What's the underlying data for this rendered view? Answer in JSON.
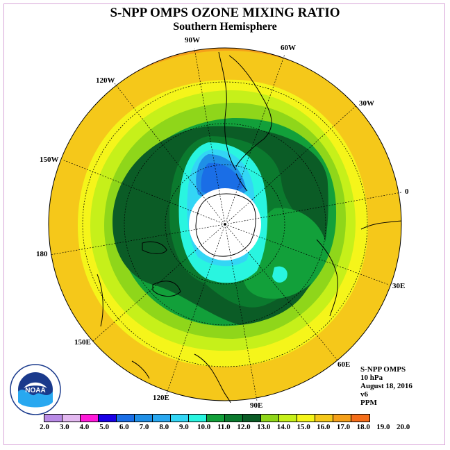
{
  "title": "S-NPP OMPS OZONE MIXING RATIO",
  "subtitle": "Southern Hemisphere",
  "longitude_labels": [
    "90W",
    "60W",
    "30W",
    "0",
    "30E",
    "60E",
    "90E",
    "120E",
    "150E",
    "180",
    "150W",
    "120W"
  ],
  "info": {
    "instrument": "S-NPP OMPS",
    "level": "10 hPa",
    "date": "August 18, 2016",
    "version": "v6",
    "units": "PPM"
  },
  "logo_text": "NOAA",
  "colorbar": {
    "ticks": [
      "2.0",
      "3.0",
      "4.0",
      "5.0",
      "6.0",
      "7.0",
      "8.0",
      "9.0",
      "10.0",
      "11.0",
      "12.0",
      "13.0",
      "14.0",
      "15.0",
      "16.0",
      "17.0",
      "18.0",
      "19.0",
      "20.0"
    ],
    "colors": [
      "#b98be6",
      "#e3b8f0",
      "#ff1ad9",
      "#1a00e6",
      "#1a6ee6",
      "#1f8fe6",
      "#29a8f0",
      "#33d6f5",
      "#29f5e0",
      "#12a03a",
      "#0b7a2e",
      "#0b5c26",
      "#8fd61a",
      "#c6f01a",
      "#f5f51a",
      "#f5c81a",
      "#f5a01a",
      "#f56e1a",
      "#e60a0a",
      "#8c5a3a"
    ]
  },
  "map_colors": {
    "orange_dark": "#f5a01a",
    "orange": "#f5c81a",
    "yellow": "#f5f51a",
    "yellow_green": "#c6f01a",
    "light_green": "#8fd61a",
    "green": "#12a03a",
    "dark_green": "#0b7a2e",
    "darkest_green": "#0b5c26",
    "cyan": "#29f5e0",
    "light_blue": "#33d6f5",
    "blue": "#1f8fe6",
    "deep_blue": "#1a6ee6"
  }
}
